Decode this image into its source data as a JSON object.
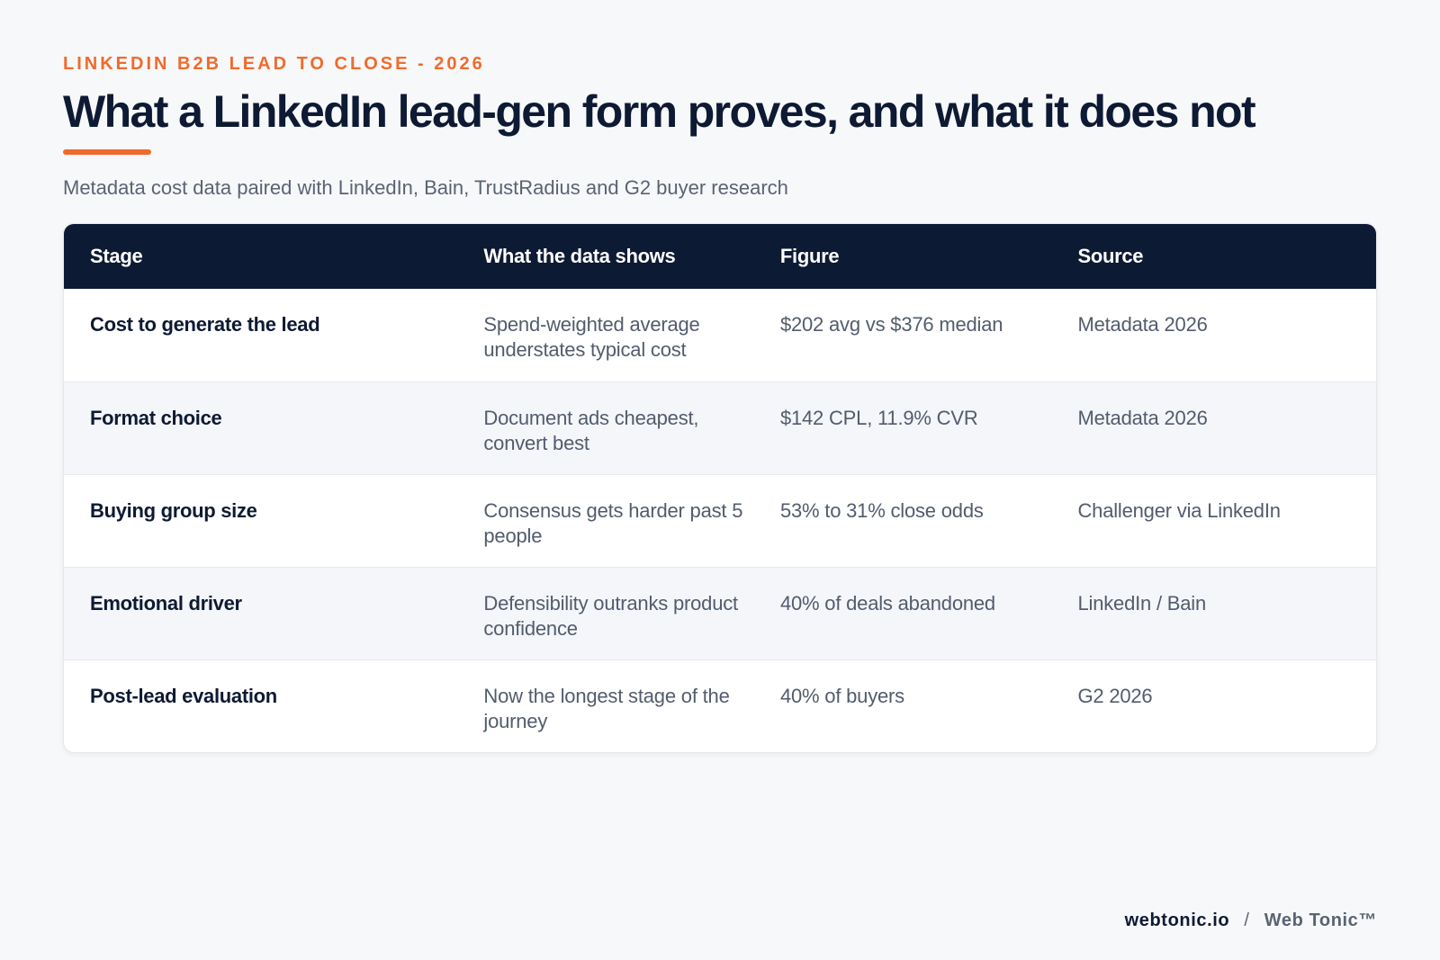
{
  "header": {
    "eyebrow": "LINKEDIN B2B LEAD TO CLOSE - 2026",
    "title": "What a LinkedIn lead-gen form proves, and what it does not",
    "subtitle": "Metadata cost data paired with LinkedIn, Bain, TrustRadius and G2 buyer research",
    "accent_color": "#ef6b2d"
  },
  "table": {
    "header_color": "#0d1a33",
    "columns": [
      "Stage",
      "What the data shows",
      "Figure",
      "Source"
    ],
    "rows": [
      {
        "stage": "Cost to generate the lead",
        "shows": "Spend-weighted average understates typical cost",
        "figure": "$202 avg vs $376 median",
        "source": "Metadata 2026"
      },
      {
        "stage": "Format choice",
        "shows": "Document ads cheapest, convert best",
        "figure": "$142 CPL, 11.9% CVR",
        "source": "Metadata 2026"
      },
      {
        "stage": "Buying group size",
        "shows": "Consensus gets harder past 5 people",
        "figure": "53% to 31% close odds",
        "source": "Challenger via LinkedIn"
      },
      {
        "stage": "Emotional driver",
        "shows": "Defensibility outranks product confidence",
        "figure": "40% of deals abandoned",
        "source": "LinkedIn / Bain"
      },
      {
        "stage": "Post-lead evaluation",
        "shows": "Now the longest stage of the journey",
        "figure": "40% of buyers",
        "source": "G2 2026"
      }
    ]
  },
  "footer": {
    "domain": "webtonic.io",
    "separator": "/",
    "brand": "Web Tonic™"
  }
}
